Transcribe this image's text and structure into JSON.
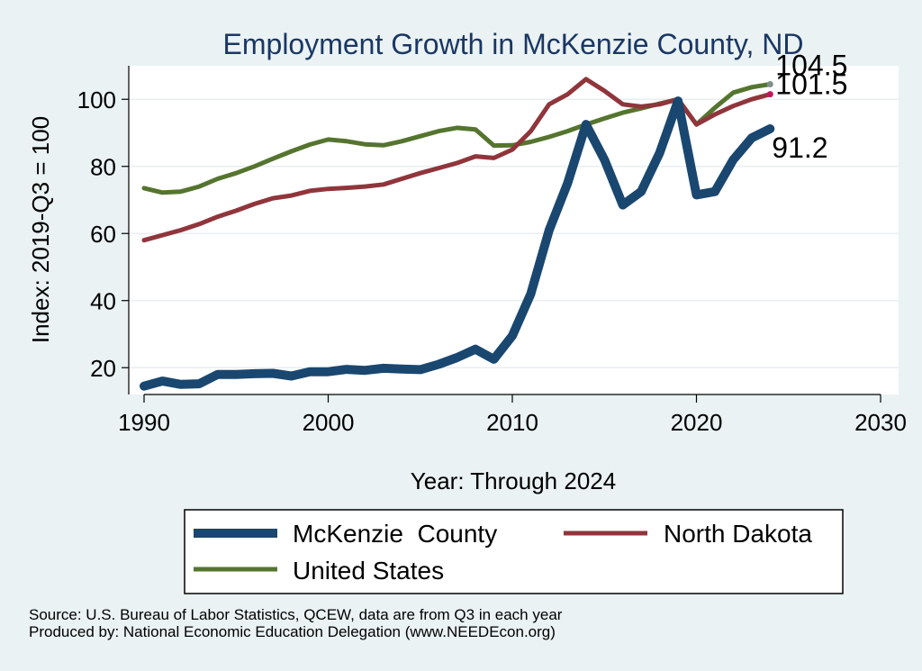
{
  "chart_data": {
    "type": "line",
    "title": "Employment Growth in McKenzie County, ND",
    "xlabel": "Year: Through 2024",
    "ylabel": "Index: 2019-Q3 = 100",
    "xlim": [
      1990,
      2030
    ],
    "ylim": [
      12,
      110
    ],
    "xticks": [
      "1990",
      "2000",
      "2010",
      "2020",
      "2030"
    ],
    "yticks": [
      "20",
      "40",
      "60",
      "80",
      "100"
    ],
    "x": [
      1990,
      1991,
      1992,
      1993,
      1994,
      1995,
      1996,
      1997,
      1998,
      1999,
      2000,
      2001,
      2002,
      2003,
      2004,
      2005,
      2006,
      2007,
      2008,
      2009,
      2010,
      2011,
      2012,
      2013,
      2014,
      2015,
      2016,
      2017,
      2018,
      2019,
      2020,
      2021,
      2022,
      2023,
      2024
    ],
    "series": [
      {
        "name": "McKenzie  County",
        "color": "#1a476f",
        "values": [
          14.5,
          16,
          15,
          15.2,
          18,
          18,
          18.2,
          18.3,
          17.5,
          18.8,
          18.8,
          19.5,
          19.2,
          19.8,
          19.6,
          19.4,
          21,
          23,
          25.5,
          22.5,
          29.5,
          42,
          61,
          75,
          92.5,
          82,
          68.5,
          72.5,
          84,
          99.5,
          71.5,
          72.5,
          82,
          88.5,
          91.2
        ]
      },
      {
        "name": "North Dakota",
        "color": "#90353b",
        "values": [
          58,
          59.5,
          61,
          62.8,
          65,
          66.8,
          68.8,
          70.5,
          71.3,
          72.7,
          73.3,
          73.6,
          74,
          74.6,
          76.3,
          78,
          79.5,
          81,
          83,
          82.5,
          85,
          90.5,
          98.5,
          101.5,
          106,
          102.5,
          98.5,
          97.8,
          98.5,
          100,
          92.5,
          95.5,
          98,
          100,
          101.5
        ]
      },
      {
        "name": "United States",
        "color": "#55752f",
        "values": [
          73.5,
          72.2,
          72.5,
          74,
          76.3,
          78,
          80,
          82.3,
          84.5,
          86.5,
          88,
          87.5,
          86.6,
          86.3,
          87.5,
          89,
          90.5,
          91.5,
          91,
          86.2,
          86.3,
          87.3,
          88.8,
          90.5,
          92.5,
          94.3,
          96,
          97.3,
          98.7,
          100,
          92.5,
          97.5,
          102,
          103.6,
          104.5
        ]
      }
    ],
    "end_labels": [
      "104.5",
      "101.5",
      "91.2"
    ],
    "legend_position": "bottom",
    "grid": true
  },
  "source_line": "Source: U.S. Bureau of Labor Statistics, QCEW, data are from Q3 in each year",
  "producer_line": "Produced by: National Economic Education Delegation (www.NEEDEcon.org)"
}
